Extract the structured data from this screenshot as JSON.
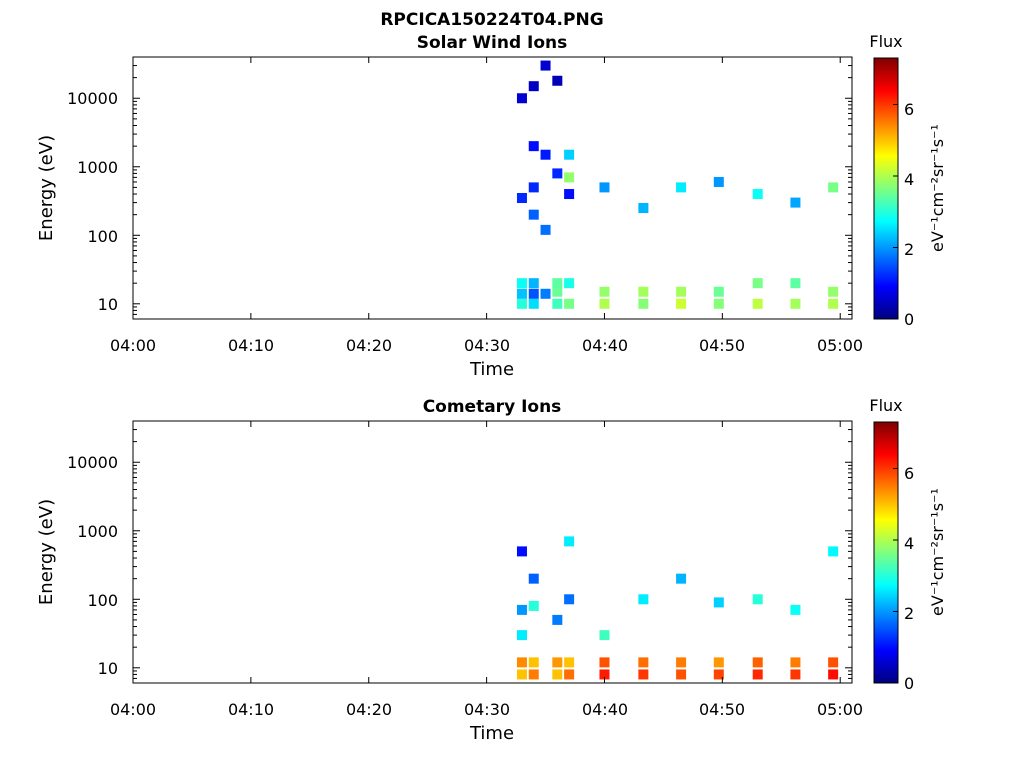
{
  "figure": {
    "filename_title": "RPCICA150224T04.PNG"
  },
  "palette": [
    "#00007f",
    "#0000ff",
    "#007fff",
    "#00ffff",
    "#7fff7f",
    "#ffff00",
    "#ff7f00",
    "#ff0000",
    "#7f0000"
  ],
  "chart_data": [
    {
      "type": "heatmap",
      "title": "Solar Wind Ions",
      "xlabel": "Time",
      "ylabel": "Energy (eV)",
      "x_ticks": [
        "04:00",
        "04:10",
        "04:20",
        "04:30",
        "04:40",
        "04:50",
        "05:00"
      ],
      "xlim_minutes": [
        0,
        61
      ],
      "y_scale": "log",
      "y_ticks": [
        "10",
        "100",
        "1000",
        "10000"
      ],
      "ylim": [
        6,
        40000
      ],
      "colorbar": {
        "title": "Flux",
        "label": "eV⁻¹cm⁻²sr⁻¹s⁻¹",
        "ticks": [
          "0",
          "2",
          "4",
          "6"
        ],
        "range": [
          0,
          7.3
        ]
      },
      "columns_minutes": [
        33,
        34,
        35,
        36,
        37,
        40,
        43.3,
        46.5,
        49.7,
        53,
        56.2,
        59.4
      ],
      "cells": [
        [
          33.0,
          10,
          3.0
        ],
        [
          33.0,
          14,
          2.3
        ],
        [
          33.0,
          20,
          2.8
        ],
        [
          33.0,
          350,
          1.2
        ],
        [
          33.0,
          10000,
          0.6
        ],
        [
          34.0,
          10,
          2.5
        ],
        [
          34.0,
          14,
          1.5
        ],
        [
          34.0,
          20,
          2.2
        ],
        [
          34.0,
          200,
          1.6
        ],
        [
          34.0,
          500,
          1.2
        ],
        [
          34.0,
          2000,
          1.0
        ],
        [
          34.0,
          15000,
          0.5
        ],
        [
          35.0,
          14,
          1.8
        ],
        [
          35.0,
          120,
          1.7
        ],
        [
          35.0,
          1500,
          1.1
        ],
        [
          35.0,
          30000,
          0.6
        ],
        [
          36.0,
          10,
          3.2
        ],
        [
          36.0,
          15,
          3.5
        ],
        [
          36.0,
          20,
          3.4
        ],
        [
          36.0,
          800,
          1.2
        ],
        [
          36.0,
          18000,
          0.4
        ],
        [
          37.0,
          10,
          3.6
        ],
        [
          37.0,
          20,
          2.9
        ],
        [
          37.0,
          400,
          1.0
        ],
        [
          37.0,
          700,
          3.8
        ],
        [
          37.0,
          1500,
          2.4
        ],
        [
          40.0,
          10,
          4.0
        ],
        [
          40.0,
          15,
          3.8
        ],
        [
          40.0,
          500,
          2.0
        ],
        [
          43.3,
          10,
          3.7
        ],
        [
          43.3,
          15,
          3.9
        ],
        [
          43.3,
          250,
          2.2
        ],
        [
          46.5,
          10,
          4.2
        ],
        [
          46.5,
          15,
          3.9
        ],
        [
          46.5,
          500,
          2.6
        ],
        [
          49.7,
          10,
          3.7
        ],
        [
          49.7,
          15,
          3.5
        ],
        [
          49.7,
          600,
          2.0
        ],
        [
          53.0,
          10,
          4.1
        ],
        [
          53.0,
          20,
          3.6
        ],
        [
          53.0,
          400,
          2.8
        ],
        [
          56.2,
          10,
          3.9
        ],
        [
          56.2,
          20,
          3.4
        ],
        [
          56.2,
          300,
          2.1
        ],
        [
          59.4,
          10,
          4.0
        ],
        [
          59.4,
          15,
          3.8
        ],
        [
          59.4,
          500,
          3.6
        ]
      ]
    },
    {
      "type": "heatmap",
      "title": "Cometary Ions",
      "xlabel": "Time",
      "ylabel": "Energy (eV)",
      "x_ticks": [
        "04:00",
        "04:10",
        "04:20",
        "04:30",
        "04:40",
        "04:50",
        "05:00"
      ],
      "xlim_minutes": [
        0,
        61
      ],
      "y_scale": "log",
      "y_ticks": [
        "10",
        "100",
        "1000",
        "10000"
      ],
      "ylim": [
        6,
        40000
      ],
      "colorbar": {
        "title": "Flux",
        "label": "eV⁻¹cm⁻²sr⁻¹s⁻¹",
        "ticks": [
          "0",
          "2",
          "4",
          "6"
        ],
        "range": [
          0,
          7.3
        ]
      },
      "columns_minutes": [
        33,
        34,
        35,
        36,
        37,
        40,
        43.3,
        46.5,
        49.7,
        53,
        56.2,
        59.4
      ],
      "cells": [
        [
          33.0,
          8,
          5.0
        ],
        [
          33.0,
          12,
          5.4
        ],
        [
          33.0,
          30,
          2.6
        ],
        [
          33.0,
          70,
          2.0
        ],
        [
          33.0,
          500,
          1.0
        ],
        [
          34.0,
          8,
          5.5
        ],
        [
          34.0,
          12,
          5.0
        ],
        [
          34.0,
          80,
          3.0
        ],
        [
          34.0,
          200,
          1.6
        ],
        [
          36.0,
          8,
          5.0
        ],
        [
          36.0,
          12,
          5.3
        ],
        [
          36.0,
          50,
          1.8
        ],
        [
          37.0,
          8,
          5.6
        ],
        [
          37.0,
          12,
          5.0
        ],
        [
          37.0,
          700,
          2.6
        ],
        [
          37.0,
          100,
          1.7
        ],
        [
          40.0,
          8,
          6.2
        ],
        [
          40.0,
          12,
          5.8
        ],
        [
          40.0,
          30,
          3.2
        ],
        [
          43.3,
          8,
          6.0
        ],
        [
          43.3,
          12,
          5.6
        ],
        [
          43.3,
          100,
          2.6
        ],
        [
          46.5,
          8,
          5.8
        ],
        [
          46.5,
          12,
          5.5
        ],
        [
          46.5,
          200,
          2.2
        ],
        [
          49.7,
          8,
          5.9
        ],
        [
          49.7,
          12,
          5.3
        ],
        [
          49.7,
          90,
          2.4
        ],
        [
          53.0,
          8,
          6.1
        ],
        [
          53.0,
          12,
          5.7
        ],
        [
          53.0,
          100,
          3.0
        ],
        [
          56.2,
          8,
          6.0
        ],
        [
          56.2,
          12,
          5.5
        ],
        [
          56.2,
          70,
          2.8
        ],
        [
          59.4,
          8,
          6.3
        ],
        [
          59.4,
          12,
          5.8
        ],
        [
          59.4,
          500,
          2.7
        ]
      ]
    }
  ]
}
